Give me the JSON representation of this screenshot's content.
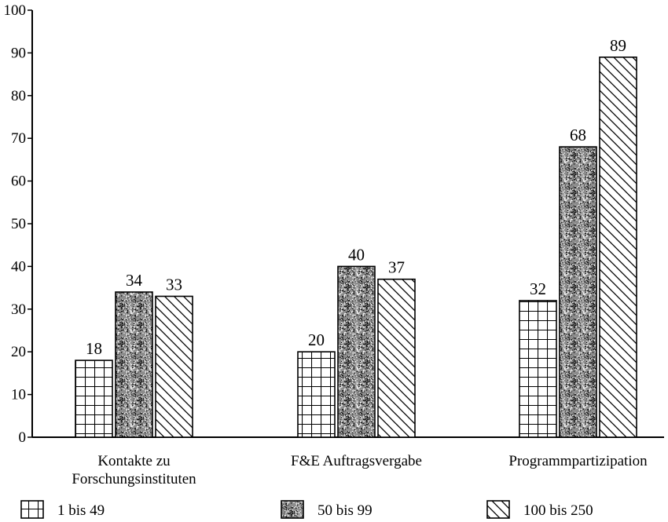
{
  "chart_data": {
    "type": "bar",
    "categories": [
      [
        "Kontakte zu",
        "Forschungsinstituten"
      ],
      [
        "F&E Auftragsvergabe"
      ],
      [
        "Programmpartizipation"
      ]
    ],
    "series": [
      {
        "name": "1 bis 49",
        "values": [
          18,
          20,
          32
        ],
        "pattern": "grid"
      },
      {
        "name": "50 bis 99",
        "values": [
          34,
          40,
          68
        ],
        "pattern": "stipple"
      },
      {
        "name": "100 bis 250",
        "values": [
          33,
          37,
          89
        ],
        "pattern": "hatch"
      }
    ],
    "ylim": [
      0,
      100
    ],
    "yticks": [
      0,
      10,
      20,
      30,
      40,
      50,
      60,
      70,
      80,
      90,
      100
    ],
    "grid": false,
    "legend_position": "bottom",
    "colors": {
      "stroke": "#000000",
      "background": "#ffffff"
    }
  }
}
